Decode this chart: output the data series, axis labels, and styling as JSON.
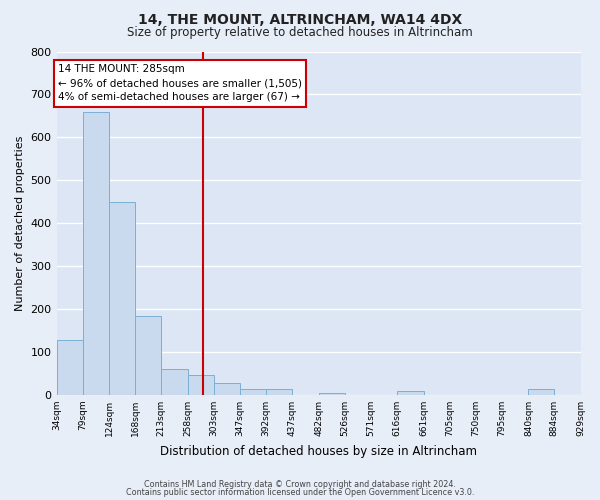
{
  "title": "14, THE MOUNT, ALTRINCHAM, WA14 4DX",
  "subtitle": "Size of property relative to detached houses in Altrincham",
  "xlabel": "Distribution of detached houses by size in Altrincham",
  "ylabel": "Number of detached properties",
  "bar_edges": [
    34,
    79,
    124,
    168,
    213,
    258,
    303,
    347,
    392,
    437,
    482,
    526,
    571,
    616,
    661,
    705,
    750,
    795,
    840,
    884,
    929
  ],
  "bar_heights": [
    128,
    660,
    450,
    185,
    60,
    47,
    28,
    13,
    13,
    0,
    5,
    0,
    0,
    10,
    0,
    0,
    0,
    0,
    13,
    0
  ],
  "bar_color": "#c9d9ee",
  "bar_edgecolor": "#7bafd4",
  "vline_x": 285,
  "vline_color": "#cc0000",
  "annotation_title": "14 THE MOUNT: 285sqm",
  "annotation_line1": "← 96% of detached houses are smaller (1,505)",
  "annotation_line2": "4% of semi-detached houses are larger (67) →",
  "annotation_box_edgecolor": "#cc0000",
  "annotation_box_facecolor": "#ffffff",
  "ylim": [
    0,
    800
  ],
  "yticks": [
    0,
    100,
    200,
    300,
    400,
    500,
    600,
    700,
    800
  ],
  "tick_labels": [
    "34sqm",
    "79sqm",
    "124sqm",
    "168sqm",
    "213sqm",
    "258sqm",
    "303sqm",
    "347sqm",
    "392sqm",
    "437sqm",
    "482sqm",
    "526sqm",
    "571sqm",
    "616sqm",
    "661sqm",
    "705sqm",
    "750sqm",
    "795sqm",
    "840sqm",
    "884sqm",
    "929sqm"
  ],
  "plot_bg_color": "#dce6f5",
  "fig_bg_color": "#e8eef8",
  "grid_color": "#ffffff",
  "footer1": "Contains HM Land Registry data © Crown copyright and database right 2024.",
  "footer2": "Contains public sector information licensed under the Open Government Licence v3.0."
}
